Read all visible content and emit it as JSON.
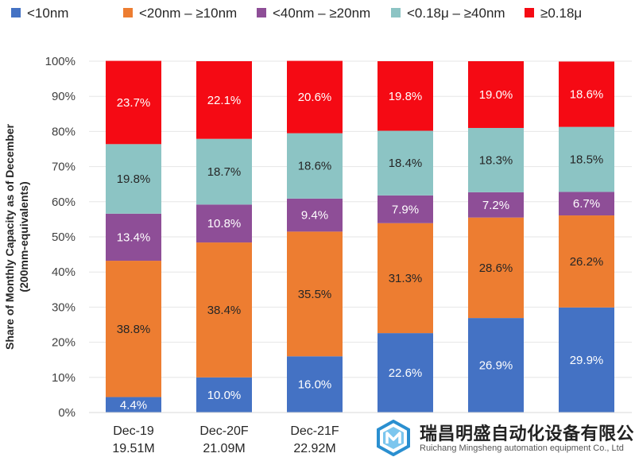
{
  "chart_data": {
    "type": "bar",
    "stacked": true,
    "normalized": true,
    "ylabel_line1": "Share of Monthly Capacity as of December",
    "ylabel_line2": "(200mm-equivalents)",
    "yticks": [
      "0%",
      "10%",
      "20%",
      "30%",
      "40%",
      "50%",
      "60%",
      "70%",
      "80%",
      "90%",
      "100%"
    ],
    "ylim": [
      0,
      100
    ],
    "grid": true,
    "legend_position": "top",
    "categories": [
      {
        "line1": "Dec-19",
        "line2": "19.51M"
      },
      {
        "line1": "Dec-20F",
        "line2": "21.09M"
      },
      {
        "line1": "Dec-21F",
        "line2": "22.92M"
      },
      {
        "line1": "",
        "line2": ""
      },
      {
        "line1": "",
        "line2": ""
      },
      {
        "line1": "",
        "line2": ""
      }
    ],
    "series": [
      {
        "name": "<10nm",
        "color": "#4472c4",
        "label_color": "#ffffff",
        "values": [
          4.4,
          10.0,
          16.0,
          22.6,
          26.9,
          29.9
        ],
        "labels": [
          "4.4%",
          "10.0%",
          "16.0%",
          "22.6%",
          "26.9%",
          "29.9%"
        ]
      },
      {
        "name": "<20nm – ≥10nm",
        "color": "#ed7d31",
        "label_color": "#262626",
        "values": [
          38.8,
          38.4,
          35.5,
          31.3,
          28.6,
          26.2
        ],
        "labels": [
          "38.8%",
          "38.4%",
          "35.5%",
          "31.3%",
          "28.6%",
          "26.2%"
        ]
      },
      {
        "name": "<40nm – ≥20nm",
        "color": "#8e4e97",
        "label_color": "#ffffff",
        "values": [
          13.4,
          10.8,
          9.4,
          7.9,
          7.2,
          6.7
        ],
        "labels": [
          "13.4%",
          "10.8%",
          "9.4%",
          "7.9%",
          "7.2%",
          "6.7%"
        ]
      },
      {
        "name": "<0.18μ – ≥40nm",
        "color": "#8cc4c4",
        "label_color": "#262626",
        "values": [
          19.8,
          18.7,
          18.6,
          18.4,
          18.3,
          18.5
        ],
        "labels": [
          "19.8%",
          "18.7%",
          "18.6%",
          "18.4%",
          "18.3%",
          "18.5%"
        ]
      },
      {
        "name": "≥0.18μ",
        "color": "#f50a14",
        "label_color": "#ffffff",
        "values": [
          23.7,
          22.1,
          20.6,
          19.8,
          19.0,
          18.6
        ],
        "labels": [
          "23.7%",
          "22.1%",
          "20.6%",
          "19.8%",
          "19.0%",
          "18.6%"
        ]
      }
    ]
  },
  "watermark": {
    "name": "瑞昌明盛自动化设备有限公司",
    "subtitle": "Ruichang Mingsheng automation equipment Co., Ltd",
    "logo_icon": "hexagon-m-logo-icon",
    "color": "#2a8fd0"
  }
}
